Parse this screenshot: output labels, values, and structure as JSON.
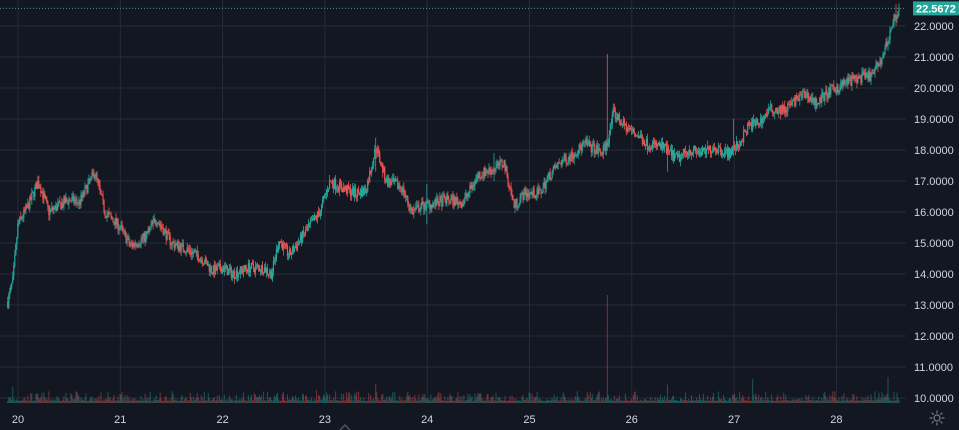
{
  "colors": {
    "background": "#131722",
    "grid": "#262b3b",
    "up": "#26a69a",
    "down": "#ef5350",
    "axis_text": "#d1d4dc",
    "last_price_bg": "#26a69a"
  },
  "icons": {
    "settings": "gear-icon",
    "scroll_marker": "chevron-up-icon"
  },
  "price_tag": {
    "label": "22.5672",
    "value": 22.5672
  },
  "chart_data": {
    "type": "candlestick",
    "title": "",
    "xlabel": "",
    "ylabel": "",
    "grid": true,
    "volume_pane": true,
    "x_ticks": [
      "20",
      "21",
      "22",
      "23",
      "24",
      "25",
      "26",
      "27",
      "28"
    ],
    "y_ticks": [
      "10.0000",
      "11.0000",
      "12.0000",
      "13.0000",
      "14.0000",
      "15.0000",
      "16.0000",
      "17.0000",
      "18.0000",
      "19.0000",
      "20.0000",
      "21.0000",
      "22.0000"
    ],
    "ylim": [
      9.9,
      22.8
    ],
    "xlim": [
      19.9,
      28.62
    ],
    "last_price": 22.5672,
    "anchors": [
      [
        19.9,
        13.1
      ],
      [
        19.95,
        13.8
      ],
      [
        20.0,
        15.6
      ],
      [
        20.1,
        16.2
      ],
      [
        20.2,
        17.0
      ],
      [
        20.3,
        16.0
      ],
      [
        20.4,
        16.2
      ],
      [
        20.5,
        16.4
      ],
      [
        20.6,
        16.3
      ],
      [
        20.75,
        17.3
      ],
      [
        20.85,
        16.0
      ],
      [
        21.0,
        15.5
      ],
      [
        21.1,
        14.9
      ],
      [
        21.25,
        15.2
      ],
      [
        21.35,
        15.8
      ],
      [
        21.5,
        15.0
      ],
      [
        21.65,
        14.8
      ],
      [
        21.8,
        14.5
      ],
      [
        21.9,
        14.1
      ],
      [
        22.0,
        14.2
      ],
      [
        22.1,
        14.0
      ],
      [
        22.25,
        14.2
      ],
      [
        22.4,
        14.2
      ],
      [
        22.48,
        14.0
      ],
      [
        22.55,
        15.1
      ],
      [
        22.65,
        14.6
      ],
      [
        22.8,
        15.3
      ],
      [
        22.95,
        16.0
      ],
      [
        23.05,
        17.0
      ],
      [
        23.15,
        16.8
      ],
      [
        23.3,
        16.6
      ],
      [
        23.4,
        16.7
      ],
      [
        23.5,
        18.1
      ],
      [
        23.6,
        17.0
      ],
      [
        23.75,
        16.8
      ],
      [
        23.85,
        16.0
      ],
      [
        23.95,
        16.2
      ],
      [
        24.1,
        16.3
      ],
      [
        24.2,
        16.4
      ],
      [
        24.35,
        16.3
      ],
      [
        24.5,
        17.2
      ],
      [
        24.65,
        17.4
      ],
      [
        24.75,
        17.6
      ],
      [
        24.85,
        16.2
      ],
      [
        24.95,
        16.6
      ],
      [
        25.1,
        16.6
      ],
      [
        25.2,
        17.2
      ],
      [
        25.3,
        17.6
      ],
      [
        25.4,
        17.8
      ],
      [
        25.55,
        18.2
      ],
      [
        25.7,
        17.9
      ],
      [
        25.76,
        18.2
      ],
      [
        25.82,
        19.2
      ],
      [
        25.95,
        18.7
      ],
      [
        26.05,
        18.5
      ],
      [
        26.15,
        18.2
      ],
      [
        26.3,
        18.1
      ],
      [
        26.45,
        17.7
      ],
      [
        26.55,
        18.0
      ],
      [
        26.7,
        17.9
      ],
      [
        26.8,
        18.1
      ],
      [
        26.95,
        17.9
      ],
      [
        27.05,
        18.2
      ],
      [
        27.15,
        18.8
      ],
      [
        27.25,
        18.9
      ],
      [
        27.35,
        19.3
      ],
      [
        27.5,
        19.3
      ],
      [
        27.6,
        19.6
      ],
      [
        27.7,
        19.8
      ],
      [
        27.8,
        19.5
      ],
      [
        27.9,
        19.8
      ],
      [
        28.0,
        20.0
      ],
      [
        28.1,
        20.2
      ],
      [
        28.2,
        20.3
      ],
      [
        28.35,
        20.4
      ],
      [
        28.45,
        21.0
      ],
      [
        28.5,
        21.5
      ],
      [
        28.55,
        22.1
      ],
      [
        28.6,
        22.5
      ]
    ],
    "spikes": [
      {
        "x": 25.76,
        "high": 21.1,
        "low": 18.3
      },
      {
        "x": 23.5,
        "high": 18.4,
        "low": 17.3
      },
      {
        "x": 24.0,
        "high": 16.9,
        "low": 15.6
      },
      {
        "x": 24.65,
        "high": 17.9,
        "low": 17.0
      },
      {
        "x": 26.35,
        "high": 18.3,
        "low": 17.3
      },
      {
        "x": 27.0,
        "high": 19.0,
        "low": 17.8
      },
      {
        "x": 28.58,
        "high": 22.7,
        "low": 22.0
      }
    ],
    "volume_spikes": [
      {
        "x": 25.76,
        "v": 1.0
      },
      {
        "x": 23.5,
        "v": 0.18
      },
      {
        "x": 27.18,
        "v": 0.22
      },
      {
        "x": 26.35,
        "v": 0.17
      },
      {
        "x": 28.5,
        "v": 0.24
      },
      {
        "x": 19.95,
        "v": 0.15
      },
      {
        "x": 22.92,
        "v": 0.12
      }
    ]
  }
}
